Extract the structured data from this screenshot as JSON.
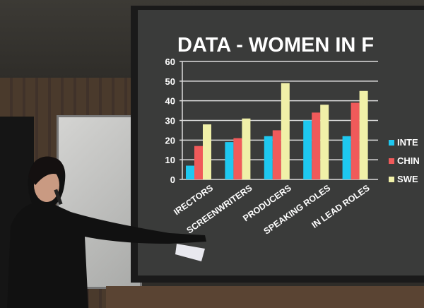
{
  "slide": {
    "title": "DATA - WOMEN IN F",
    "legend": [
      {
        "label": "INTE",
        "color": "#1ec8f0"
      },
      {
        "label": "CHIN",
        "color": "#f05a5a"
      },
      {
        "label": "SWE",
        "color": "#f0f0a8"
      }
    ]
  },
  "chart_data": {
    "type": "bar",
    "categories": [
      "IRECTORS",
      "SCREENWRITERS",
      "PRODUCERS",
      "SPEAKING ROLES",
      "IN LEAD ROLES"
    ],
    "series": [
      {
        "name": "INTE",
        "values": [
          7,
          19,
          22,
          30,
          22
        ]
      },
      {
        "name": "CHIN",
        "values": [
          17,
          21,
          25,
          34,
          39
        ]
      },
      {
        "name": "SWE",
        "values": [
          28,
          31,
          49,
          38,
          45
        ]
      }
    ],
    "yticks": [
      "0",
      "10",
      "20",
      "30",
      "40",
      "50",
      "60"
    ],
    "ylim": [
      0,
      60
    ],
    "grid": true,
    "legend_placement": "right"
  }
}
